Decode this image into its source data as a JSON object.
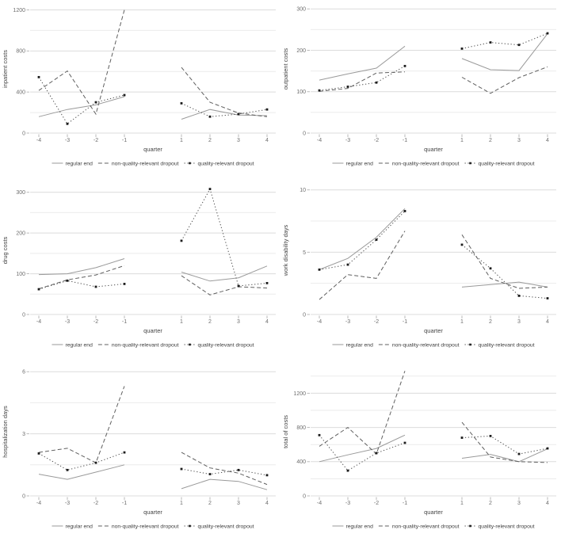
{
  "page": {
    "background": "#ffffff"
  },
  "style": {
    "grid_major": "#dcdcdc",
    "grid_minor": "#ebebeb",
    "tick_mark": "#b3b3b3",
    "tick_label_color": "#6e6e6e",
    "axis_title_color": "#454545",
    "legend_text_color": "#3c3c3c",
    "series_colors": {
      "solid": "#9a9a9a",
      "dashed": "#5f5f5f",
      "dotted-square": "#4f4f4f"
    },
    "marker_color": "#1c1c1c"
  },
  "legend": {
    "items": [
      {
        "label": "regular end",
        "style": "solid"
      },
      {
        "label": "non-quality-relevant dropout",
        "style": "dashed"
      },
      {
        "label": "quality-relevant dropout",
        "style": "dotted-square"
      }
    ]
  },
  "chart_data": [
    {
      "type": "line",
      "title": "",
      "xlabel": "quarter",
      "ylabel": "inpatient costs",
      "x": [
        -4,
        -3,
        -2,
        -1,
        1,
        2,
        3,
        4
      ],
      "xlim": [
        -4.3,
        4.3
      ],
      "ylim": [
        0,
        1250
      ],
      "yticks_major": [
        0,
        400,
        800,
        1200
      ],
      "yticks_minor": [
        200,
        600,
        1000
      ],
      "grid": "horizontal-only",
      "legend_position": "bottom",
      "series": [
        {
          "name": "regular end",
          "style": "solid",
          "values": [
            160,
            230,
            275,
            355,
            135,
            230,
            175,
            170
          ]
        },
        {
          "name": "non-quality-relevant dropout",
          "style": "dashed",
          "values": [
            415,
            605,
            185,
            1200,
            640,
            300,
            195,
            160
          ]
        },
        {
          "name": "quality-relevant dropout",
          "style": "dotted-square",
          "values": [
            545,
            90,
            300,
            370,
            290,
            160,
            185,
            230
          ]
        }
      ]
    },
    {
      "type": "line",
      "title": "",
      "xlabel": "quarter",
      "ylabel": "outpatient costs",
      "x": [
        -4,
        -3,
        -2,
        -1,
        1,
        2,
        3,
        4
      ],
      "xlim": [
        -4.3,
        4.3
      ],
      "ylim": [
        0,
        310
      ],
      "yticks_major": [
        0,
        100,
        200,
        300
      ],
      "yticks_minor": [
        50,
        150,
        250
      ],
      "grid": "horizontal-only",
      "legend_position": "bottom",
      "series": [
        {
          "name": "regular end",
          "style": "solid",
          "values": [
            128,
            143,
            157,
            210,
            180,
            153,
            151,
            240
          ]
        },
        {
          "name": "non-quality-relevant dropout",
          "style": "dashed",
          "values": [
            101,
            108,
            145,
            148,
            135,
            96,
            134,
            160
          ]
        },
        {
          "name": "quality-relevant dropout",
          "style": "dotted-square",
          "values": [
            103,
            112,
            122,
            162,
            204,
            219,
            213,
            241
          ]
        }
      ]
    },
    {
      "type": "line",
      "title": "",
      "xlabel": "quarter",
      "ylabel": "drug costs",
      "x": [
        -4,
        -3,
        -2,
        -1,
        1,
        2,
        3,
        4
      ],
      "xlim": [
        -4.3,
        4.3
      ],
      "ylim": [
        0,
        315
      ],
      "yticks_major": [
        0,
        100,
        200,
        300
      ],
      "yticks_minor": [
        50,
        150,
        250
      ],
      "grid": "horizontal-only",
      "legend_position": "bottom",
      "series": [
        {
          "name": "regular end",
          "style": "solid",
          "values": [
            98,
            100,
            115,
            137,
            104,
            82,
            90,
            119
          ]
        },
        {
          "name": "non-quality-relevant dropout",
          "style": "dashed",
          "values": [
            63,
            85,
            97,
            120,
            95,
            48,
            68,
            65
          ]
        },
        {
          "name": "quality-relevant dropout",
          "style": "dotted-square",
          "values": [
            62,
            83,
            68,
            75,
            181,
            308,
            70,
            77
          ]
        }
      ]
    },
    {
      "type": "line",
      "title": "",
      "xlabel": "quarter",
      "ylabel": "work disability days",
      "x": [
        -4,
        -3,
        -2,
        -1,
        1,
        2,
        3,
        4
      ],
      "xlim": [
        -4.3,
        4.3
      ],
      "ylim": [
        0,
        10.3
      ],
      "yticks_major": [
        0,
        5,
        10
      ],
      "yticks_minor": [
        2.5,
        7.5
      ],
      "grid": "horizontal-only",
      "legend_position": "bottom",
      "series": [
        {
          "name": "regular end",
          "style": "solid",
          "values": [
            3.6,
            4.5,
            6.2,
            8.5,
            2.2,
            2.4,
            2.6,
            2.2
          ]
        },
        {
          "name": "non-quality-relevant dropout",
          "style": "dashed",
          "values": [
            1.2,
            3.2,
            2.9,
            6.7,
            6.4,
            2.9,
            2.1,
            2.2
          ]
        },
        {
          "name": "quality-relevant dropout",
          "style": "dotted-square",
          "values": [
            3.6,
            4.0,
            6.0,
            8.3,
            5.6,
            3.7,
            1.5,
            1.3
          ]
        }
      ]
    },
    {
      "type": "line",
      "title": "",
      "xlabel": "quarter",
      "ylabel": "hospitalization days",
      "x": [
        -4,
        -3,
        -2,
        -1,
        1,
        2,
        3,
        4
      ],
      "xlim": [
        -4.3,
        4.3
      ],
      "ylim": [
        0,
        6.2
      ],
      "yticks_major": [
        0,
        3,
        6
      ],
      "yticks_minor": [
        1.5,
        4.5
      ],
      "grid": "horizontal-only",
      "legend_position": "bottom",
      "series": [
        {
          "name": "regular end",
          "style": "solid",
          "values": [
            1.05,
            0.8,
            1.15,
            1.5,
            0.35,
            0.8,
            0.7,
            0.3
          ]
        },
        {
          "name": "non-quality-relevant dropout",
          "style": "dashed",
          "values": [
            2.1,
            2.3,
            1.6,
            5.3,
            2.1,
            1.35,
            1.1,
            0.55
          ]
        },
        {
          "name": "quality-relevant dropout",
          "style": "dotted-square",
          "values": [
            2.05,
            1.25,
            1.6,
            2.1,
            1.3,
            1.05,
            1.25,
            1.0
          ]
        }
      ]
    },
    {
      "type": "line",
      "title": "",
      "xlabel": "quarter",
      "ylabel": "total of costs",
      "x": [
        -4,
        -3,
        -2,
        -1,
        1,
        2,
        3,
        4
      ],
      "xlim": [
        -4.3,
        4.3
      ],
      "ylim": [
        0,
        1500
      ],
      "yticks_major": [
        0,
        400,
        800,
        1200
      ],
      "yticks_minor": [
        200,
        600,
        1000,
        1400
      ],
      "grid": "horizontal-only",
      "legend_position": "bottom",
      "series": [
        {
          "name": "regular end",
          "style": "solid",
          "values": [
            400,
            480,
            555,
            710,
            440,
            485,
            400,
            550
          ]
        },
        {
          "name": "non-quality-relevant dropout",
          "style": "dashed",
          "values": [
            580,
            800,
            490,
            1460,
            860,
            455,
            400,
            390
          ]
        },
        {
          "name": "quality-relevant dropout",
          "style": "dotted-square",
          "values": [
            710,
            295,
            500,
            620,
            680,
            700,
            490,
            555
          ]
        }
      ]
    }
  ]
}
